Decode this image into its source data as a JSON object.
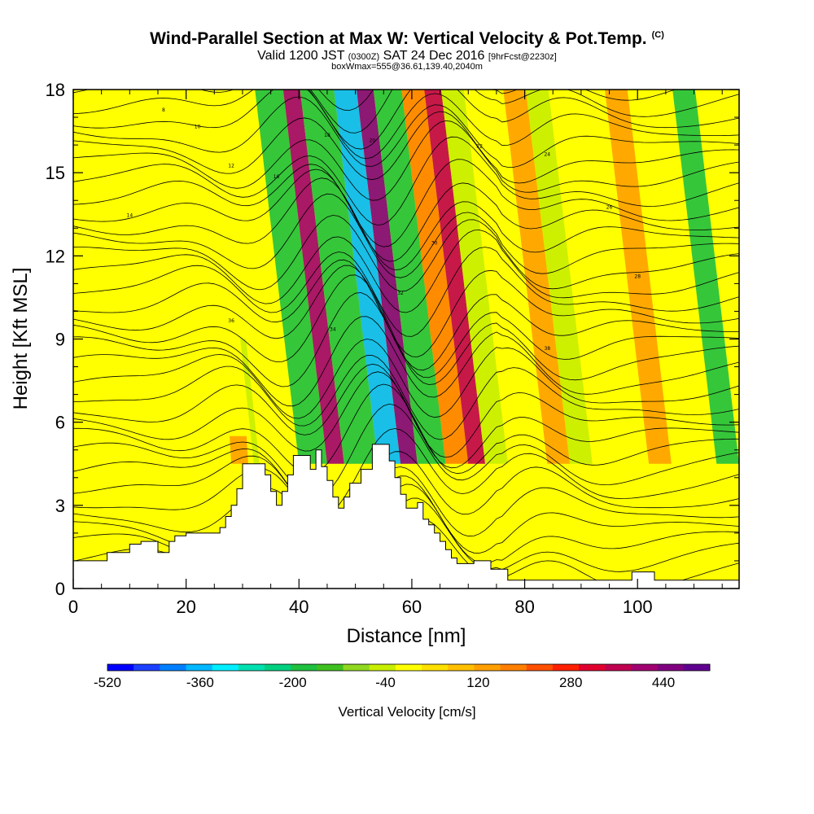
{
  "header": {
    "title": "Wind-Parallel Section at Max W: Vertical Velocity & Pot.Temp.",
    "title_tag": "(C)",
    "valid_prefix": "Valid 1200 JST",
    "valid_zulu": "(0300Z)",
    "valid_date": "SAT 24 Dec 2016",
    "valid_fcst": "[9hrFcst@2230z]",
    "box_line": "boxWmax=555@36.61,139.40,2040m"
  },
  "chart_data": {
    "type": "heatmap",
    "xlabel": "Distance [nm]",
    "ylabel": "Height [Kft MSL]",
    "xlim": [
      0,
      118
    ],
    "ylim": [
      0,
      18
    ],
    "x_ticks": [
      "0",
      "20",
      "40",
      "60",
      "80",
      "100"
    ],
    "y_ticks": [
      "0",
      "3",
      "6",
      "9",
      "12",
      "15",
      "18"
    ],
    "colorbar": {
      "title": "Vertical Velocity [cm/s]",
      "tick_labels": [
        "-520",
        "-360",
        "-200",
        "-40",
        "120",
        "280",
        "440"
      ],
      "range": [
        -520,
        520
      ],
      "colors": [
        "#0000ff",
        "#1c40ff",
        "#0080ff",
        "#00b8ff",
        "#00eeff",
        "#00e0b0",
        "#00d080",
        "#20c040",
        "#40c020",
        "#90d820",
        "#c8ee00",
        "#ffff00",
        "#ffe000",
        "#ffc000",
        "#ffa000",
        "#ff8000",
        "#ff5000",
        "#ff2000",
        "#e00030",
        "#c00050",
        "#a00070",
        "#800080",
        "#600090"
      ]
    },
    "terrain_kft": [
      [
        0,
        0.7
      ],
      [
        0,
        1.0
      ],
      [
        6,
        1.0
      ],
      [
        6,
        1.3
      ],
      [
        10,
        1.3
      ],
      [
        10,
        1.6
      ],
      [
        12,
        1.6
      ],
      [
        12,
        1.7
      ],
      [
        15,
        1.7
      ],
      [
        15,
        1.3
      ],
      [
        17,
        1.3
      ],
      [
        17,
        1.7
      ],
      [
        18,
        1.7
      ],
      [
        18,
        1.9
      ],
      [
        20,
        1.9
      ],
      [
        20,
        2.0
      ],
      [
        26,
        2.0
      ],
      [
        26,
        2.2
      ],
      [
        27,
        2.2
      ],
      [
        27,
        2.6
      ],
      [
        28,
        2.6
      ],
      [
        28,
        3.0
      ],
      [
        29,
        3.0
      ],
      [
        29,
        3.6
      ],
      [
        30,
        3.6
      ],
      [
        30,
        4.5
      ],
      [
        34,
        4.5
      ],
      [
        34,
        4.1
      ],
      [
        35,
        4.1
      ],
      [
        35,
        3.5
      ],
      [
        36,
        3.5
      ],
      [
        36,
        3.0
      ],
      [
        37,
        3.0
      ],
      [
        37,
        3.5
      ],
      [
        38,
        3.5
      ],
      [
        38,
        4.1
      ],
      [
        39,
        4.1
      ],
      [
        39,
        4.8
      ],
      [
        42,
        4.8
      ],
      [
        42,
        4.3
      ],
      [
        43,
        4.3
      ],
      [
        43,
        5.0
      ],
      [
        44,
        5.0
      ],
      [
        44,
        4.4
      ],
      [
        45,
        4.4
      ],
      [
        45,
        3.9
      ],
      [
        46,
        3.9
      ],
      [
        46,
        3.3
      ],
      [
        47,
        3.3
      ],
      [
        47,
        2.9
      ],
      [
        48,
        2.9
      ],
      [
        48,
        3.3
      ],
      [
        49,
        3.3
      ],
      [
        49,
        3.8
      ],
      [
        51,
        3.8
      ],
      [
        51,
        4.3
      ],
      [
        53,
        4.3
      ],
      [
        53,
        5.2
      ],
      [
        56,
        5.2
      ],
      [
        56,
        4.6
      ],
      [
        57,
        4.6
      ],
      [
        57,
        4.0
      ],
      [
        58,
        4.0
      ],
      [
        58,
        3.4
      ],
      [
        59,
        3.4
      ],
      [
        59,
        2.9
      ],
      [
        61,
        2.9
      ],
      [
        61,
        3.1
      ],
      [
        62,
        3.1
      ],
      [
        62,
        2.5
      ],
      [
        63,
        2.5
      ],
      [
        63,
        2.3
      ],
      [
        64,
        2.3
      ],
      [
        64,
        2.0
      ],
      [
        65,
        2.0
      ],
      [
        65,
        1.7
      ],
      [
        66,
        1.7
      ],
      [
        66,
        1.4
      ],
      [
        67,
        1.4
      ],
      [
        67,
        1.1
      ],
      [
        68,
        1.1
      ],
      [
        68,
        0.9
      ],
      [
        71,
        0.9
      ],
      [
        71,
        1.0
      ],
      [
        74,
        1.0
      ],
      [
        74,
        0.7
      ],
      [
        77,
        0.7
      ],
      [
        77,
        0.3
      ],
      [
        99,
        0.3
      ],
      [
        99,
        0.6
      ],
      [
        103,
        0.6
      ],
      [
        103,
        0.3
      ],
      [
        118,
        0.3
      ],
      [
        118,
        0
      ]
    ],
    "bands": [
      {
        "x0": 26,
        "x1": 29,
        "y_top": 5.5,
        "w": 120
      },
      {
        "x0": 30,
        "x1": 31,
        "y_top": 9,
        "w": -40
      },
      {
        "x0": 38,
        "x1": 43,
        "y_top": 18,
        "w": -200
      },
      {
        "x0": 43,
        "x1": 46,
        "y_top": 18,
        "w": 400
      },
      {
        "x0": 46,
        "x1": 52,
        "y_top": 18,
        "w": -200
      },
      {
        "x0": 52,
        "x1": 56,
        "y_top": 18,
        "w": -360
      },
      {
        "x0": 56,
        "x1": 59,
        "y_top": 18,
        "w": 440
      },
      {
        "x0": 59,
        "x1": 64,
        "y_top": 18,
        "w": -200
      },
      {
        "x0": 64,
        "x1": 68,
        "y_top": 18,
        "w": 200
      },
      {
        "x0": 68,
        "x1": 71,
        "y_top": 18,
        "w": 360
      },
      {
        "x0": 71,
        "x1": 75,
        "y_top": 18,
        "w": -40
      },
      {
        "x0": 82,
        "x1": 86,
        "y_top": 18,
        "w": 120
      },
      {
        "x0": 86,
        "x1": 90,
        "y_top": 18,
        "w": -40
      },
      {
        "x0": 100,
        "x1": 104,
        "y_top": 18,
        "w": 120
      },
      {
        "x0": 112,
        "x1": 116,
        "y_top": 18,
        "w": -200
      }
    ],
    "isentrope_labels": [
      "8",
      "10",
      "12",
      "14",
      "16",
      "18",
      "20",
      "22",
      "24",
      "26",
      "28",
      "30",
      "32",
      "34",
      "36",
      "38"
    ]
  }
}
